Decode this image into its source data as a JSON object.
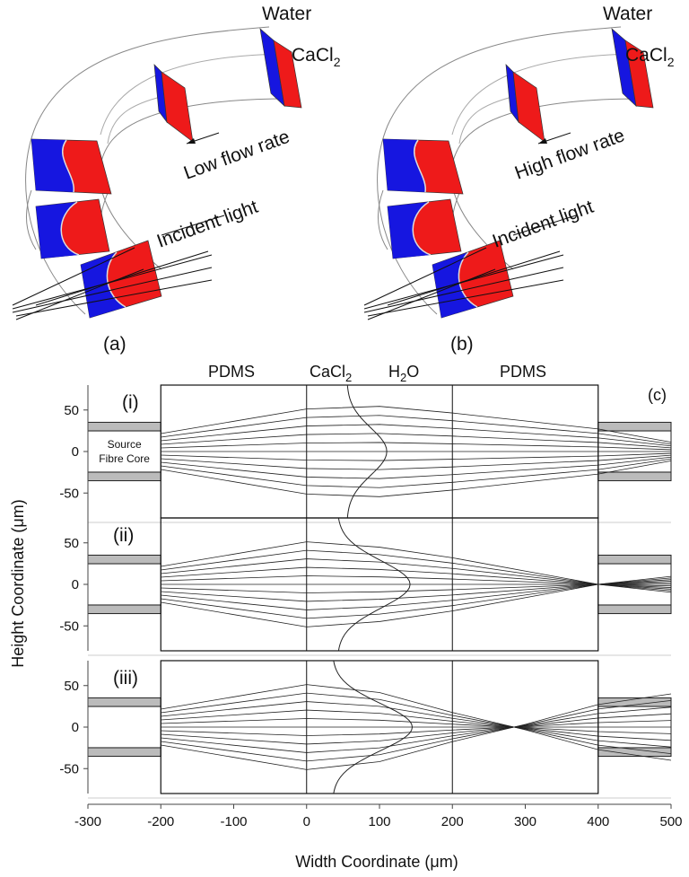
{
  "panel_a": {
    "label": "(a)",
    "water": "Water",
    "cacl": "CaCl",
    "cacl_sub": "2",
    "flow": "Low flow rate",
    "light": "Incident light"
  },
  "panel_b": {
    "label": "(b)",
    "water": "Water",
    "cacl": "CaCl",
    "cacl_sub": "2",
    "flow": "High flow rate",
    "light": "Incident light"
  },
  "panel_c": {
    "label": "(c)",
    "x_label": "Width Coordinate (μm)",
    "y_label": "Height Coordinate (μm)",
    "region_pdms_left": "PDMS",
    "region_cacl": "CaCl",
    "region_cacl_sub": "2",
    "region_h": "H",
    "region_h_sub": "2",
    "region_h_o": "O",
    "region_pdms_right": "PDMS",
    "fibre_line1": "Source",
    "fibre_line2": "Fibre Core",
    "rows": [
      "(i)",
      "(ii)",
      "(iii)"
    ],
    "xlim": [
      -300,
      500
    ],
    "xticks": [
      -300,
      -200,
      -100,
      0,
      100,
      200,
      300,
      400,
      500
    ],
    "ylim": [
      -80,
      80
    ],
    "yticks": [
      -50,
      0,
      50
    ]
  }
}
